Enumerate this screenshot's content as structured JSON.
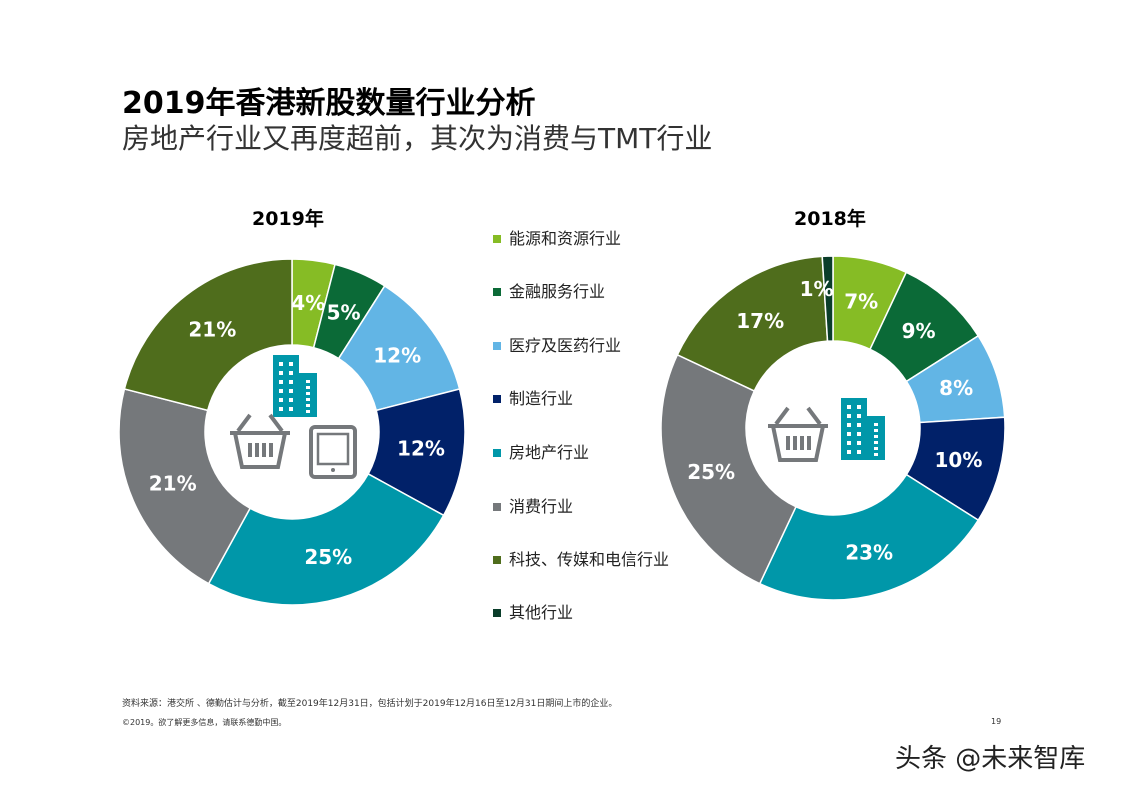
{
  "title": "2019年香港新股数量行业分析",
  "subtitle": "房地产行业又再度超前，其次为消费与TMT行业",
  "legend": [
    {
      "label": "能源和资源行业",
      "color": "#86bc25"
    },
    {
      "label": "金融服务行业",
      "color": "#0b6a37"
    },
    {
      "label": "医疗及医药行业",
      "color": "#62b5e5"
    },
    {
      "label": "制造行业",
      "color": "#012169"
    },
    {
      "label": "房地产行业",
      "color": "#0097a9"
    },
    {
      "label": "消费行业",
      "color": "#75787b"
    },
    {
      "label": "科技、传媒和电信行业",
      "color": "#4f6d1c"
    },
    {
      "label": "其他行业",
      "color": "#0a3d2a"
    }
  ],
  "chart_data": [
    {
      "type": "pie",
      "donut": true,
      "title": "2019年",
      "categories": [
        "能源和资源行业",
        "金融服务行业",
        "医疗及医药行业",
        "制造行业",
        "房地产行业",
        "消费行业",
        "科技、传媒和电信行业",
        "其他行业"
      ],
      "values": [
        4,
        5,
        12,
        12,
        25,
        21,
        21,
        0
      ],
      "labels": [
        "4%",
        "5%",
        "12%",
        "12%",
        "25%",
        "21%",
        "21%",
        ""
      ]
    },
    {
      "type": "pie",
      "donut": true,
      "title": "2018年",
      "categories": [
        "能源和资源行业",
        "金融服务行业",
        "医疗及医药行业",
        "制造行业",
        "房地产行业",
        "消费行业",
        "科技、传媒和电信行业",
        "其他行业"
      ],
      "values": [
        7,
        9,
        8,
        10,
        23,
        25,
        17,
        1
      ],
      "labels": [
        "7%",
        "9%",
        "8%",
        "10%",
        "23%",
        "25%",
        "17%",
        "1%"
      ]
    }
  ],
  "footer": {
    "source": "资料来源：港交所 、德勤估计与分析，截至2019年12月31日，包括计划于2019年12月16日至12月31日期间上市的企业。",
    "copyright": "©2019。欲了解更多信息，请联系德勤中国。",
    "page": "19"
  },
  "watermark": "头条 @未来智库"
}
